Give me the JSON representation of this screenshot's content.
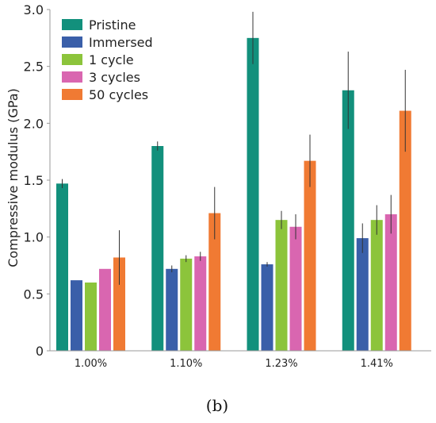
{
  "chart_data": {
    "type": "bar",
    "categories": [
      "1.00%",
      "1.10%",
      "1.23%",
      "1.41%"
    ],
    "ylabel": "Compressive modulus (GPa)",
    "ylim": [
      0,
      3.0
    ],
    "yticks": [
      "0",
      "0.5",
      "1.0",
      "1.5",
      "2.0",
      "2.5",
      "3.0"
    ],
    "legend_placement": "top-left",
    "series": [
      {
        "name": "Pristine",
        "color": "#12907c",
        "values": [
          1.47,
          1.8,
          2.75,
          2.29
        ],
        "errors": [
          0.04,
          0.04,
          0.23,
          0.34
        ]
      },
      {
        "name": "Immersed",
        "color": "#3a5fa9",
        "values": [
          0.62,
          0.72,
          0.76,
          0.99
        ],
        "errors": [
          0.0,
          0.03,
          0.02,
          0.13
        ]
      },
      {
        "name": "1 cycle",
        "color": "#8cc43b",
        "values": [
          0.6,
          0.81,
          1.15,
          1.15
        ],
        "errors": [
          0.0,
          0.03,
          0.08,
          0.13
        ]
      },
      {
        "name": "3 cycles",
        "color": "#d966b0",
        "values": [
          0.72,
          0.83,
          1.09,
          1.2
        ],
        "errors": [
          0.0,
          0.04,
          0.11,
          0.17
        ]
      },
      {
        "name": "50 cycles",
        "color": "#f07a33",
        "values": [
          0.82,
          1.21,
          1.67,
          2.11
        ],
        "errors": [
          0.24,
          0.23,
          0.23,
          0.36
        ]
      }
    ]
  },
  "caption": "(b)"
}
